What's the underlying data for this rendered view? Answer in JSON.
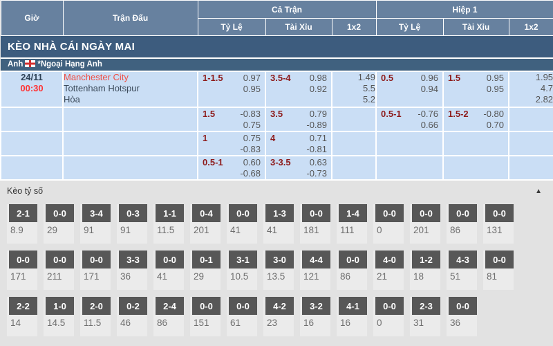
{
  "colors": {
    "header_bg": "#67819f",
    "banner_bg": "#3d5c7e",
    "row_bg": "#cadef5",
    "handicap_line_red": "#8d1a1a",
    "favorite_team_red": "#f04e45",
    "kickoff_time_red": "#ff3334",
    "score_label_bg": "#575757",
    "section_bg": "#e2e2e2"
  },
  "header": {
    "time": "Giờ",
    "match": "Trận Đấu",
    "full_match": "Cả Trận",
    "first_half": "Hiệp 1",
    "handicap": "Tỷ Lệ",
    "over_under": "Tài Xỉu",
    "one_x_two": "1x2"
  },
  "banner": "KÈO NHÀ CÁI NGÀY MAI",
  "league": {
    "country": "Anh",
    "flag_icon": "england-flag-icon",
    "name": "*Ngoại Hạng Anh"
  },
  "match": {
    "date": "24/11",
    "time": "00:30",
    "home": "Manchester City",
    "away": "Tottenham Hotspur",
    "draw": "Hòa"
  },
  "odds_rows": [
    {
      "ft_hdp": {
        "line": "1-1.5",
        "v1": "0.97",
        "v2": "0.95"
      },
      "ft_ou": {
        "line": "3.5-4",
        "v1": "0.98",
        "v2": "0.92"
      },
      "ft_1x2": [
        "1.49",
        "5.5",
        "5.2"
      ],
      "h1_hdp": {
        "line": "0.5",
        "v1": "0.96",
        "v2": "0.94"
      },
      "h1_ou": {
        "line": "1.5",
        "v1": "0.95",
        "v2": "0.95"
      },
      "h1_1x2": [
        "1.95",
        "4.7",
        "2.82"
      ]
    },
    {
      "ft_hdp": {
        "line": "1.5",
        "v1": "-0.83",
        "v2": "0.75"
      },
      "ft_ou": {
        "line": "3.5",
        "v1": "0.79",
        "v2": "-0.89"
      },
      "ft_1x2": [],
      "h1_hdp": {
        "line": "0.5-1",
        "v1": "-0.76",
        "v2": "0.66"
      },
      "h1_ou": {
        "line": "1.5-2",
        "v1": "-0.80",
        "v2": "0.70"
      },
      "h1_1x2": []
    },
    {
      "ft_hdp": {
        "line": "1",
        "v1": "0.75",
        "v2": "-0.83"
      },
      "ft_ou": {
        "line": "4",
        "v1": "0.71",
        "v2": "-0.81"
      },
      "ft_1x2": [],
      "h1_hdp": null,
      "h1_ou": null,
      "h1_1x2": []
    },
    {
      "ft_hdp": {
        "line": "0.5-1",
        "v1": "0.60",
        "v2": "-0.68"
      },
      "ft_ou": {
        "line": "3-3.5",
        "v1": "0.63",
        "v2": "-0.73"
      },
      "ft_1x2": [],
      "h1_hdp": null,
      "h1_ou": null,
      "h1_1x2": []
    }
  ],
  "score_section": {
    "title": "Kèo tỷ số",
    "collapse_icon": "triangle-up",
    "rows": [
      [
        {
          "score": "2-1",
          "odds": "8.9"
        },
        {
          "score": "0-0",
          "odds": "29"
        },
        {
          "score": "3-4",
          "odds": "91"
        },
        {
          "score": "0-3",
          "odds": "91"
        },
        {
          "score": "1-1",
          "odds": "11.5"
        },
        {
          "score": "0-4",
          "odds": "201"
        },
        {
          "score": "0-0",
          "odds": "41"
        },
        {
          "score": "1-3",
          "odds": "41"
        },
        {
          "score": "0-0",
          "odds": "181"
        },
        {
          "score": "1-4",
          "odds": "111"
        },
        {
          "score": "0-0",
          "odds": "0"
        },
        {
          "score": "0-0",
          "odds": "201"
        },
        {
          "score": "0-0",
          "odds": "86"
        },
        {
          "score": "0-0",
          "odds": "131"
        }
      ],
      [
        {
          "score": "0-0",
          "odds": "171"
        },
        {
          "score": "0-0",
          "odds": "211"
        },
        {
          "score": "0-0",
          "odds": "171"
        },
        {
          "score": "3-3",
          "odds": "36"
        },
        {
          "score": "0-0",
          "odds": "41"
        },
        {
          "score": "0-1",
          "odds": "29"
        },
        {
          "score": "3-1",
          "odds": "10.5"
        },
        {
          "score": "3-0",
          "odds": "13.5"
        },
        {
          "score": "4-4",
          "odds": "121"
        },
        {
          "score": "0-0",
          "odds": "86"
        },
        {
          "score": "4-0",
          "odds": "21"
        },
        {
          "score": "1-2",
          "odds": "18"
        },
        {
          "score": "4-3",
          "odds": "51"
        },
        {
          "score": "0-0",
          "odds": "81"
        }
      ],
      [
        {
          "score": "2-2",
          "odds": "14"
        },
        {
          "score": "1-0",
          "odds": "14.5"
        },
        {
          "score": "2-0",
          "odds": "11.5"
        },
        {
          "score": "0-2",
          "odds": "46"
        },
        {
          "score": "2-4",
          "odds": "86"
        },
        {
          "score": "0-0",
          "odds": "151"
        },
        {
          "score": "0-0",
          "odds": "61"
        },
        {
          "score": "4-2",
          "odds": "23"
        },
        {
          "score": "3-2",
          "odds": "16"
        },
        {
          "score": "4-1",
          "odds": "16"
        },
        {
          "score": "0-0",
          "odds": "0"
        },
        {
          "score": "2-3",
          "odds": "31"
        },
        {
          "score": "0-0",
          "odds": "36"
        }
      ]
    ]
  }
}
